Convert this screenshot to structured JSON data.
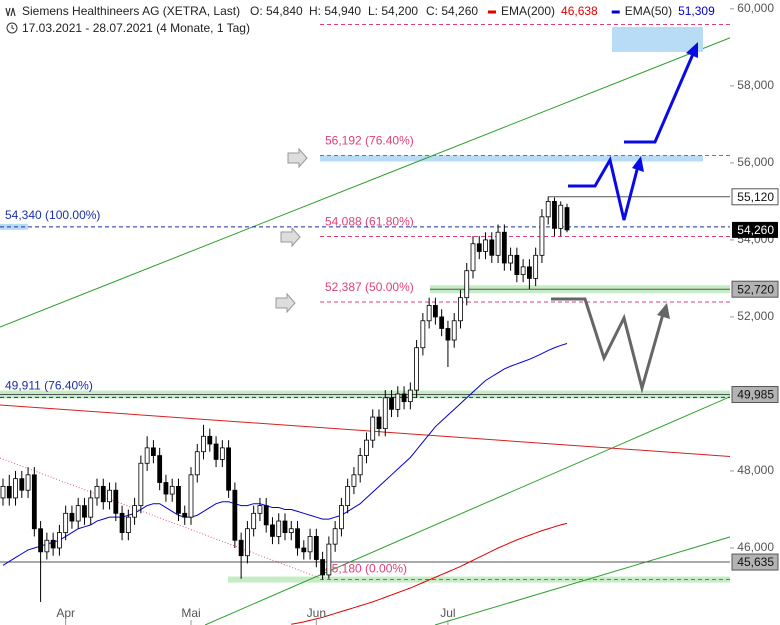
{
  "chart_data": {
    "type": "candlestick",
    "title": "Siemens Healthineers AG (XETRA, Last)",
    "ohlc_labels": [
      "O: 54,840",
      "H: 54,940",
      "L: 54,200",
      "C: 54,260"
    ],
    "subtitle": "17.03.2021 - 28.07.2021   (4 Monate, 1 Tag)",
    "categories": [
      null,
      null,
      null,
      null,
      null,
      null,
      null,
      null,
      null,
      null,
      "Apr",
      null,
      null,
      null,
      null,
      null,
      null,
      null,
      null,
      null,
      null,
      null,
      null,
      null,
      null,
      null,
      null,
      null,
      null,
      null,
      "Mai",
      null,
      null,
      null,
      null,
      null,
      null,
      null,
      null,
      null,
      null,
      null,
      null,
      null,
      null,
      null,
      null,
      null,
      null,
      null,
      "Jun",
      null,
      null,
      null,
      null,
      null,
      null,
      null,
      null,
      null,
      null,
      null,
      null,
      null,
      null,
      null,
      null,
      null,
      null,
      null,
      null,
      "Jul",
      null,
      null,
      null,
      null,
      null,
      null,
      null,
      null,
      null,
      null,
      null,
      null,
      null,
      null,
      null,
      null,
      null,
      null,
      null
    ],
    "open": [
      47.3,
      47.6,
      47.3,
      47.8,
      47.5,
      47.9,
      46.5,
      45.9,
      46.2,
      46.0,
      46.4,
      46.9,
      46.7,
      47.1,
      46.8,
      47.3,
      47.6,
      47.2,
      47.5,
      46.9,
      46.4,
      46.8,
      47.1,
      48.2,
      48.6,
      48.4,
      47.7,
      47.4,
      47.6,
      46.9,
      46.8,
      47.9,
      48.5,
      48.9,
      48.7,
      48.3,
      48.6,
      47.5,
      46.2,
      45.8,
      46.5,
      46.9,
      47.1,
      46.6,
      46.3,
      46.7,
      46.4,
      46.5,
      46.0,
      45.9,
      46.3,
      45.7,
      45.3,
      46.1,
      46.5,
      47.1,
      47.6,
      47.9,
      48.4,
      48.8,
      49.4,
      49.1,
      49.9,
      49.6,
      50.0,
      49.8,
      50.1,
      51.2,
      51.9,
      52.3,
      52.0,
      51.7,
      51.4,
      51.9,
      52.5,
      53.2,
      53.9,
      53.7,
      54.0,
      53.6,
      54.2,
      53.4,
      53.6,
      53.1,
      53.3,
      53.0,
      53.6,
      54.6,
      55.0,
      54.3,
      54.84
    ],
    "high": [
      47.8,
      47.9,
      48.0,
      48.0,
      48.1,
      48.1,
      46.7,
      46.4,
      46.4,
      46.6,
      47.1,
      47.1,
      47.3,
      47.3,
      47.5,
      47.8,
      47.8,
      47.7,
      47.7,
      47.1,
      47.0,
      47.3,
      48.4,
      48.9,
      48.8,
      48.6,
      47.9,
      47.8,
      47.8,
      47.1,
      48.1,
      48.7,
      49.2,
      49.1,
      48.9,
      48.8,
      48.8,
      47.7,
      46.4,
      46.7,
      47.1,
      47.3,
      47.3,
      46.8,
      46.9,
      46.9,
      46.7,
      46.7,
      46.2,
      46.5,
      46.5,
      45.9,
      46.3,
      46.7,
      47.3,
      47.8,
      48.1,
      48.6,
      49.0,
      49.6,
      49.6,
      50.1,
      50.1,
      50.2,
      50.2,
      50.3,
      51.4,
      52.1,
      52.5,
      52.5,
      52.2,
      51.9,
      52.1,
      52.7,
      53.4,
      54.1,
      54.1,
      54.2,
      54.2,
      54.4,
      54.4,
      53.8,
      53.8,
      53.5,
      53.5,
      53.8,
      54.8,
      55.12,
      55.1,
      55.0,
      54.94
    ],
    "low": [
      47.1,
      47.1,
      47.1,
      47.3,
      47.3,
      46.3,
      44.6,
      45.7,
      45.8,
      45.8,
      46.2,
      46.5,
      46.5,
      46.6,
      46.6,
      47.1,
      47.0,
      47.0,
      46.7,
      46.2,
      46.2,
      46.6,
      46.9,
      48.0,
      48.2,
      47.5,
      47.2,
      47.2,
      46.7,
      46.6,
      46.6,
      47.7,
      48.3,
      48.5,
      48.1,
      48.1,
      47.3,
      46.0,
      45.2,
      45.6,
      46.3,
      46.7,
      46.4,
      46.1,
      46.1,
      46.2,
      46.2,
      45.8,
      45.7,
      45.7,
      45.5,
      45.18,
      45.2,
      45.9,
      46.3,
      46.9,
      47.4,
      47.7,
      48.2,
      48.6,
      48.9,
      48.9,
      49.4,
      49.4,
      49.6,
      49.6,
      49.9,
      51.0,
      51.7,
      51.8,
      51.5,
      50.7,
      51.2,
      51.7,
      52.3,
      53.0,
      53.5,
      53.5,
      53.4,
      53.4,
      53.2,
      53.2,
      52.9,
      52.9,
      52.72,
      52.8,
      53.4,
      54.4,
      54.1,
      54.1,
      54.2
    ],
    "close": [
      47.6,
      47.3,
      47.8,
      47.5,
      47.9,
      46.5,
      45.9,
      46.2,
      46.0,
      46.4,
      46.9,
      46.7,
      47.1,
      46.8,
      47.3,
      47.6,
      47.2,
      47.5,
      46.9,
      46.4,
      46.8,
      47.1,
      48.2,
      48.6,
      48.4,
      47.7,
      47.4,
      47.6,
      46.9,
      46.8,
      47.9,
      48.5,
      48.9,
      48.7,
      48.3,
      48.6,
      47.5,
      46.2,
      45.8,
      46.5,
      46.9,
      47.1,
      46.6,
      46.3,
      46.7,
      46.4,
      46.5,
      46.0,
      45.9,
      46.3,
      45.7,
      45.3,
      46.1,
      46.5,
      47.1,
      47.6,
      47.9,
      48.4,
      48.8,
      49.4,
      49.1,
      49.9,
      49.6,
      50.0,
      49.8,
      50.1,
      51.2,
      51.9,
      52.3,
      52.0,
      51.7,
      51.4,
      51.9,
      52.5,
      53.2,
      53.9,
      53.7,
      54.0,
      53.6,
      54.2,
      53.4,
      53.6,
      53.1,
      53.3,
      53.0,
      53.6,
      54.6,
      55.0,
      54.3,
      54.9,
      54.26
    ],
    "last_label": "54,260",
    "series": [
      {
        "name": "EMA(200)",
        "color": "#e00000",
        "last_label": "46,638",
        "values": [
          null,
          null,
          null,
          null,
          null,
          null,
          null,
          null,
          null,
          null,
          null,
          null,
          null,
          null,
          null,
          null,
          null,
          null,
          null,
          null,
          null,
          null,
          null,
          null,
          null,
          null,
          null,
          null,
          null,
          null,
          null,
          null,
          null,
          null,
          null,
          null,
          null,
          null,
          null,
          null,
          null,
          null,
          null,
          null,
          null,
          null,
          44.02,
          44.05,
          44.08,
          44.12,
          44.16,
          44.2,
          44.25,
          44.3,
          44.35,
          44.4,
          44.45,
          44.5,
          44.55,
          44.6,
          44.66,
          44.72,
          44.78,
          44.84,
          44.9,
          44.96,
          45.03,
          45.1,
          45.17,
          45.24,
          45.31,
          45.38,
          45.45,
          45.52,
          45.6,
          45.68,
          45.76,
          45.84,
          45.92,
          46.0,
          46.07,
          46.14,
          46.21,
          46.27,
          46.33,
          46.39,
          46.45,
          46.5,
          46.55,
          46.6,
          46.638
        ]
      },
      {
        "name": "EMA(50)",
        "color": "#0000cc",
        "last_label": "51,309",
        "values": [
          45.55,
          45.65,
          45.75,
          45.85,
          45.95,
          46.0,
          46.05,
          46.1,
          46.15,
          46.2,
          46.3,
          46.4,
          46.5,
          46.55,
          46.6,
          46.7,
          46.75,
          46.8,
          46.8,
          46.8,
          46.85,
          46.9,
          47.0,
          47.1,
          47.15,
          47.15,
          47.05,
          46.95,
          46.85,
          46.8,
          46.8,
          46.85,
          46.95,
          47.05,
          47.15,
          47.2,
          47.2,
          47.15,
          47.1,
          47.1,
          47.15,
          47.15,
          47.1,
          47.05,
          47.05,
          47.0,
          47.0,
          46.95,
          46.9,
          46.85,
          46.8,
          46.75,
          46.75,
          46.8,
          46.85,
          46.95,
          47.05,
          47.15,
          47.3,
          47.45,
          47.6,
          47.75,
          47.9,
          48.05,
          48.2,
          48.35,
          48.55,
          48.75,
          48.95,
          49.15,
          49.3,
          49.45,
          49.6,
          49.75,
          49.9,
          50.05,
          50.2,
          50.35,
          50.45,
          50.55,
          50.65,
          50.72,
          50.78,
          50.84,
          50.9,
          50.97,
          51.05,
          51.13,
          51.2,
          51.26,
          51.309
        ]
      }
    ],
    "fib_levels": [
      {
        "value": 59.594
      },
      {
        "value": 56.192,
        "label": "56,192 (76.40%)"
      },
      {
        "value": 54.088,
        "label": "54,088 (61.80%)"
      },
      {
        "value": 52.387,
        "label": "52,387 (50.00%)"
      },
      {
        "value": 45.18,
        "label": "45,180 (0.00%)"
      }
    ],
    "blue_levels": [
      {
        "value": 54.34,
        "label": "54,340 (100.00%)"
      },
      {
        "value": 49.911,
        "label": "49,911 (76.40%)"
      }
    ],
    "price_lines": [
      {
        "value": 55.12,
        "label": "55,120"
      },
      {
        "value": 52.72,
        "label": "52,720"
      },
      {
        "value": 49.985,
        "label": "49,985"
      },
      {
        "value": 45.635,
        "label": "45,635"
      }
    ],
    "ylim": [
      44.0,
      60.23
    ],
    "yticks": [
      {
        "value": 46,
        "label": "46,000"
      },
      {
        "value": 48,
        "label": "48,000"
      },
      {
        "value": 52,
        "label": "52,000"
      },
      {
        "value": 54,
        "label": "54,000"
      },
      {
        "value": 56,
        "label": "56,000"
      },
      {
        "value": 58,
        "label": "58,000"
      },
      {
        "value": 60,
        "label": "60,000"
      }
    ],
    "fib_color": "#e0407a",
    "blue_color": "#1a2fa8"
  }
}
